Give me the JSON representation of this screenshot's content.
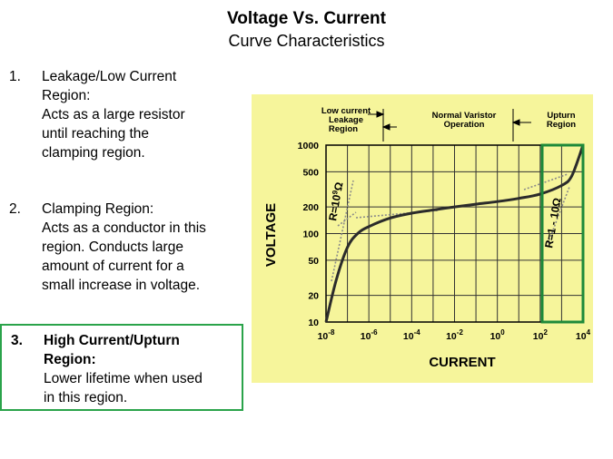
{
  "slide": {
    "title": "Voltage Vs. Current",
    "subtitle": "Curve Characteristics"
  },
  "items": [
    {
      "number": "1.",
      "heading_lines": [
        "Leakage/Low  Current",
        "Region:"
      ],
      "description_lines": [
        "Acts as a large resistor",
        "until reaching the",
        "clamping region."
      ]
    },
    {
      "number": "2.",
      "heading_lines": [
        "Clamping Region:"
      ],
      "description_lines": [
        "Acts as a conductor in this",
        "region. Conducts large",
        "amount of current for a",
        "small increase in voltage."
      ]
    },
    {
      "number": "3.",
      "heading_lines": [
        "High Current/Upturn",
        "Region:"
      ],
      "description_lines": [
        "Lower lifetime when used",
        "in this region."
      ]
    }
  ],
  "chart_data": {
    "type": "line",
    "xlabel": "CURRENT",
    "ylabel": "VOLTAGE",
    "x_scale": "log",
    "y_scale": "log",
    "xlim": [
      1e-08,
      10000.0
    ],
    "ylim": [
      10,
      1000
    ],
    "x_ticks": [
      {
        "base": "10",
        "exp": "-8"
      },
      {
        "base": "10",
        "exp": "-6"
      },
      {
        "base": "10",
        "exp": "-4"
      },
      {
        "base": "10",
        "exp": "-2"
      },
      {
        "base": "10",
        "exp": "0"
      },
      {
        "base": "10",
        "exp": "2"
      },
      {
        "base": "10",
        "exp": "4"
      }
    ],
    "y_ticks": [
      "1000",
      "500",
      "200",
      "100",
      "50",
      "20",
      "10"
    ],
    "series": [
      {
        "x": [
          1e-08,
          3e-08,
          1e-07,
          3e-07,
          1e-06,
          1e-05,
          0.0001,
          0.001,
          0.01,
          0.1,
          1,
          10,
          100,
          1000,
          3000,
          10000
        ],
        "y": [
          10,
          30,
          70,
          100,
          120,
          150,
          170,
          185,
          200,
          215,
          230,
          250,
          280,
          350,
          450,
          1000
        ]
      }
    ],
    "regions": [
      {
        "label_lines": [
          "Low current",
          "Leakage",
          "Region"
        ]
      },
      {
        "label_lines": [
          "Normal Varistor",
          "Operation"
        ]
      },
      {
        "label_lines": [
          "Upturn",
          "Region"
        ]
      }
    ],
    "annotations": [
      {
        "text": "R=10",
        "sup": "9",
        "unit": "Ω"
      },
      {
        "text": "R=1 - 10",
        "unit": "Ω"
      }
    ],
    "colors": {
      "background": "#f6f59b",
      "highlight": "#1e8a3a",
      "curve": "#2b2b2b",
      "grid": "#333333"
    }
  }
}
